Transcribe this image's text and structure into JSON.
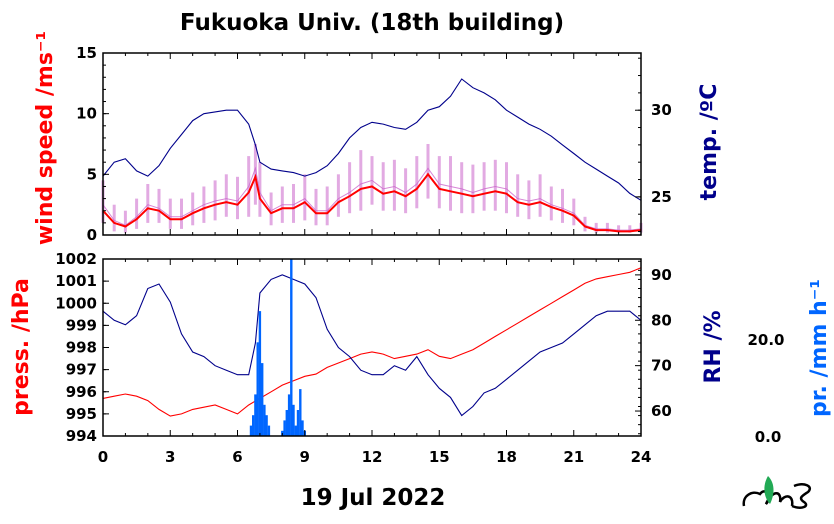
{
  "title": "Fukuoka Univ. (18th building)",
  "date_label": "19 Jul 2022",
  "colors": {
    "wind_mean": "#ff0000",
    "wind_raw": "#cc66cc",
    "temperature": "#00008b",
    "pressure": "#ff0000",
    "humidity": "#00008b",
    "precip": "#0066ff",
    "axis": "#000000"
  },
  "axis_titles": {
    "wind": "wind speed /ms⁻¹",
    "temp": "temp. /ºC",
    "pressure": "press. /hPa",
    "humidity": "RH /%",
    "precip": "pr. /mm h⁻¹"
  },
  "precip_ticks": [
    "20.0",
    "0.0"
  ],
  "logo": "MES",
  "chart_data": [
    {
      "type": "line",
      "panel": "top",
      "x_ticks": [
        "0",
        "3",
        "6",
        "9",
        "12",
        "15",
        "18",
        "21",
        "24"
      ],
      "xlim": [
        0,
        24
      ],
      "y_left": {
        "label": "wind speed /ms⁻¹",
        "lim": [
          0,
          15
        ],
        "ticks": [
          "0",
          "5",
          "10",
          "15"
        ]
      },
      "y_right": {
        "label": "temp. /ºC",
        "lim": [
          22.8,
          33.3
        ],
        "ticks": [
          "25",
          "30"
        ]
      },
      "series": [
        {
          "axis": "left",
          "style": "raw",
          "x": [
            0,
            0.5,
            1,
            1.5,
            2,
            2.5,
            3,
            3.5,
            4,
            4.5,
            5,
            5.5,
            6,
            6.5,
            6.8,
            7,
            7.5,
            8,
            8.5,
            9,
            9.5,
            10,
            10.5,
            11,
            11.5,
            12,
            12.5,
            13,
            13.5,
            14,
            14.5,
            15,
            15.5,
            16,
            16.5,
            17,
            17.5,
            18,
            18.5,
            19,
            19.5,
            20,
            20.5,
            21,
            21.5,
            22,
            22.5,
            23,
            23.5,
            24
          ],
          "y": [
            2.5,
            1.2,
            0.8,
            1.5,
            2.5,
            2.2,
            1.5,
            1.5,
            2,
            2.5,
            2.8,
            3,
            2.8,
            4,
            5.5,
            3.5,
            2,
            2.5,
            2.5,
            3,
            2,
            2,
            3,
            3.5,
            4.2,
            4.5,
            3.8,
            4,
            3.5,
            4.2,
            5.5,
            4.2,
            4,
            3.8,
            3.5,
            3.8,
            4,
            3.8,
            3,
            2.8,
            3,
            2.5,
            2.2,
            1.8,
            0.8,
            0.5,
            0.5,
            0.4,
            0.4,
            0.5
          ],
          "y_min": [
            1.0,
            0.3,
            0.2,
            0.5,
            1.0,
            1.0,
            0.5,
            0.5,
            0.8,
            1.0,
            1.2,
            1.5,
            1.3,
            1.5,
            2.5,
            1.5,
            0.8,
            1.0,
            1.0,
            1.2,
            0.8,
            0.8,
            1.5,
            1.8,
            2.0,
            2.5,
            2.0,
            2.0,
            1.8,
            2.2,
            3.0,
            2.2,
            2.0,
            1.8,
            1.8,
            2.0,
            2.0,
            1.8,
            1.5,
            1.3,
            1.5,
            1.2,
            1.0,
            0.8,
            0.3,
            0.2,
            0.2,
            0.2,
            0.2,
            0.2
          ],
          "y_max": [
            4.5,
            2.5,
            2.0,
            3.0,
            4.2,
            3.8,
            3.0,
            3.0,
            3.5,
            4.0,
            4.5,
            5.0,
            4.8,
            6.5,
            7.5,
            6.0,
            3.5,
            4.0,
            4.2,
            5.0,
            3.8,
            4.0,
            5.0,
            6.0,
            7.0,
            6.5,
            6.0,
            6.2,
            5.5,
            6.5,
            7.5,
            6.5,
            6.5,
            6.0,
            5.8,
            6.0,
            6.2,
            6.0,
            5.0,
            4.5,
            5.0,
            4.0,
            3.8,
            3.0,
            1.5,
            1.0,
            1.0,
            0.8,
            0.8,
            1.0
          ]
        },
        {
          "axis": "left",
          "style": "mean",
          "x": [
            0,
            0.5,
            1,
            1.5,
            2,
            2.5,
            3,
            3.5,
            4,
            4.5,
            5,
            5.5,
            6,
            6.5,
            6.8,
            7,
            7.5,
            8,
            8.5,
            9,
            9.5,
            10,
            10.5,
            11,
            11.5,
            12,
            12.5,
            13,
            13.5,
            14,
            14.5,
            15,
            15.5,
            16,
            16.5,
            17,
            17.5,
            18,
            18.5,
            19,
            19.5,
            20,
            20.5,
            21,
            21.5,
            22,
            22.5,
            23,
            23.5,
            24
          ],
          "y": [
            2.0,
            1.0,
            0.7,
            1.3,
            2.2,
            2.0,
            1.3,
            1.3,
            1.8,
            2.2,
            2.5,
            2.7,
            2.5,
            3.5,
            4.8,
            3.0,
            1.8,
            2.2,
            2.2,
            2.7,
            1.8,
            1.8,
            2.7,
            3.2,
            3.8,
            4.0,
            3.4,
            3.6,
            3.2,
            3.8,
            5.0,
            3.8,
            3.6,
            3.4,
            3.2,
            3.4,
            3.6,
            3.4,
            2.7,
            2.5,
            2.7,
            2.3,
            2.0,
            1.6,
            0.7,
            0.4,
            0.4,
            0.3,
            0.3,
            0.4
          ]
        },
        {
          "axis": "right",
          "style": "line",
          "name": "temperature",
          "x": [
            0,
            0.5,
            1,
            1.5,
            2,
            2.5,
            3,
            3.5,
            4,
            4.5,
            5,
            5.5,
            6,
            6.5,
            6.8,
            7,
            7.5,
            8,
            8.5,
            9,
            9.5,
            10,
            10.5,
            11,
            11.5,
            12,
            12.5,
            13,
            13.5,
            14,
            14.5,
            15,
            15.5,
            16,
            16.5,
            17,
            17.5,
            18,
            18.5,
            19,
            19.5,
            20,
            20.5,
            21,
            21.5,
            22,
            22.5,
            23,
            23.5,
            24
          ],
          "y": [
            26.2,
            27.0,
            27.2,
            26.5,
            26.2,
            26.8,
            27.8,
            28.6,
            29.4,
            29.8,
            29.9,
            30.0,
            30.0,
            29.2,
            28.0,
            27.0,
            26.6,
            26.5,
            26.4,
            26.2,
            26.4,
            26.8,
            27.5,
            28.4,
            29.0,
            29.3,
            29.2,
            29.0,
            28.9,
            29.3,
            30.0,
            30.2,
            30.8,
            31.8,
            31.3,
            31.0,
            30.6,
            30.0,
            29.6,
            29.2,
            28.9,
            28.5,
            28.0,
            27.5,
            27.0,
            26.6,
            26.2,
            25.8,
            25.2,
            24.8
          ]
        }
      ]
    },
    {
      "type": "line",
      "panel": "bottom",
      "x_ticks": [
        "0",
        "3",
        "6",
        "9",
        "12",
        "15",
        "18",
        "21",
        "24"
      ],
      "xlim": [
        0,
        24
      ],
      "y_left": {
        "label": "press. /hPa",
        "lim": [
          994,
          1002
        ],
        "ticks": [
          "994",
          "995",
          "996",
          "997",
          "998",
          "999",
          "1000",
          "1001",
          "1002"
        ]
      },
      "y_right": {
        "label": "RH /%",
        "lim": [
          54.5,
          93.5
        ],
        "ticks": [
          "60",
          "70",
          "80",
          "90"
        ]
      },
      "series": [
        {
          "axis": "left",
          "style": "line",
          "name": "pressure",
          "x": [
            0,
            0.5,
            1,
            1.5,
            2,
            2.5,
            3,
            3.5,
            4,
            4.5,
            5,
            5.5,
            6,
            6.5,
            7,
            7.5,
            8,
            8.5,
            9,
            9.5,
            10,
            10.5,
            11,
            11.5,
            12,
            12.5,
            13,
            13.5,
            14,
            14.5,
            15,
            15.5,
            16,
            16.5,
            17,
            17.5,
            18,
            18.5,
            19,
            19.5,
            20,
            20.5,
            21,
            21.5,
            22,
            22.5,
            23,
            23.5,
            24
          ],
          "y": [
            995.7,
            995.8,
            995.9,
            995.8,
            995.6,
            995.2,
            994.9,
            995.0,
            995.2,
            995.3,
            995.4,
            995.2,
            995.0,
            995.4,
            995.7,
            996.0,
            996.3,
            996.5,
            996.7,
            996.8,
            997.1,
            997.3,
            997.5,
            997.7,
            997.8,
            997.7,
            997.5,
            997.6,
            997.7,
            997.9,
            997.6,
            997.5,
            997.7,
            997.9,
            998.2,
            998.5,
            998.8,
            999.1,
            999.4,
            999.7,
            1000.0,
            1000.3,
            1000.6,
            1000.9,
            1001.1,
            1001.2,
            1001.3,
            1001.4,
            1001.6
          ]
        },
        {
          "axis": "right",
          "style": "line",
          "name": "humidity",
          "x": [
            0,
            0.5,
            1,
            1.5,
            2,
            2.5,
            3,
            3.5,
            4,
            4.5,
            5,
            5.5,
            6,
            6.5,
            6.8,
            7,
            7.5,
            8,
            8.5,
            9,
            9.5,
            10,
            10.5,
            11,
            11.5,
            12,
            12.5,
            13,
            13.5,
            14,
            14.5,
            15,
            15.5,
            16,
            16.5,
            17,
            17.5,
            18,
            18.5,
            19,
            19.5,
            20,
            20.5,
            21,
            21.5,
            22,
            22.5,
            23,
            23.5,
            24
          ],
          "y": [
            82,
            80,
            79,
            81,
            87,
            88,
            84,
            77,
            73,
            72,
            70,
            69,
            68,
            68,
            75,
            86,
            89,
            90,
            89,
            88,
            85,
            78,
            74,
            72,
            69,
            68,
            68,
            70,
            69,
            72,
            68,
            65,
            63,
            59,
            61,
            64,
            65,
            67,
            69,
            71,
            73,
            74,
            75,
            77,
            79,
            81,
            82,
            82,
            82,
            80
          ]
        },
        {
          "axis": "precip",
          "type": "bar",
          "name": "precip",
          "ylim": [
            0,
            34
          ],
          "x": [
            6.6,
            6.7,
            6.8,
            6.9,
            7.0,
            7.1,
            7.2,
            7.3,
            7.4,
            8.0,
            8.1,
            8.2,
            8.3,
            8.4,
            8.5,
            8.6,
            8.7,
            8.8,
            8.9,
            9.0
          ],
          "values": [
            2,
            4,
            8,
            18,
            24,
            14,
            6,
            4,
            2,
            1,
            3,
            5,
            8,
            34,
            6,
            2,
            5,
            9,
            3,
            1
          ]
        }
      ]
    }
  ]
}
